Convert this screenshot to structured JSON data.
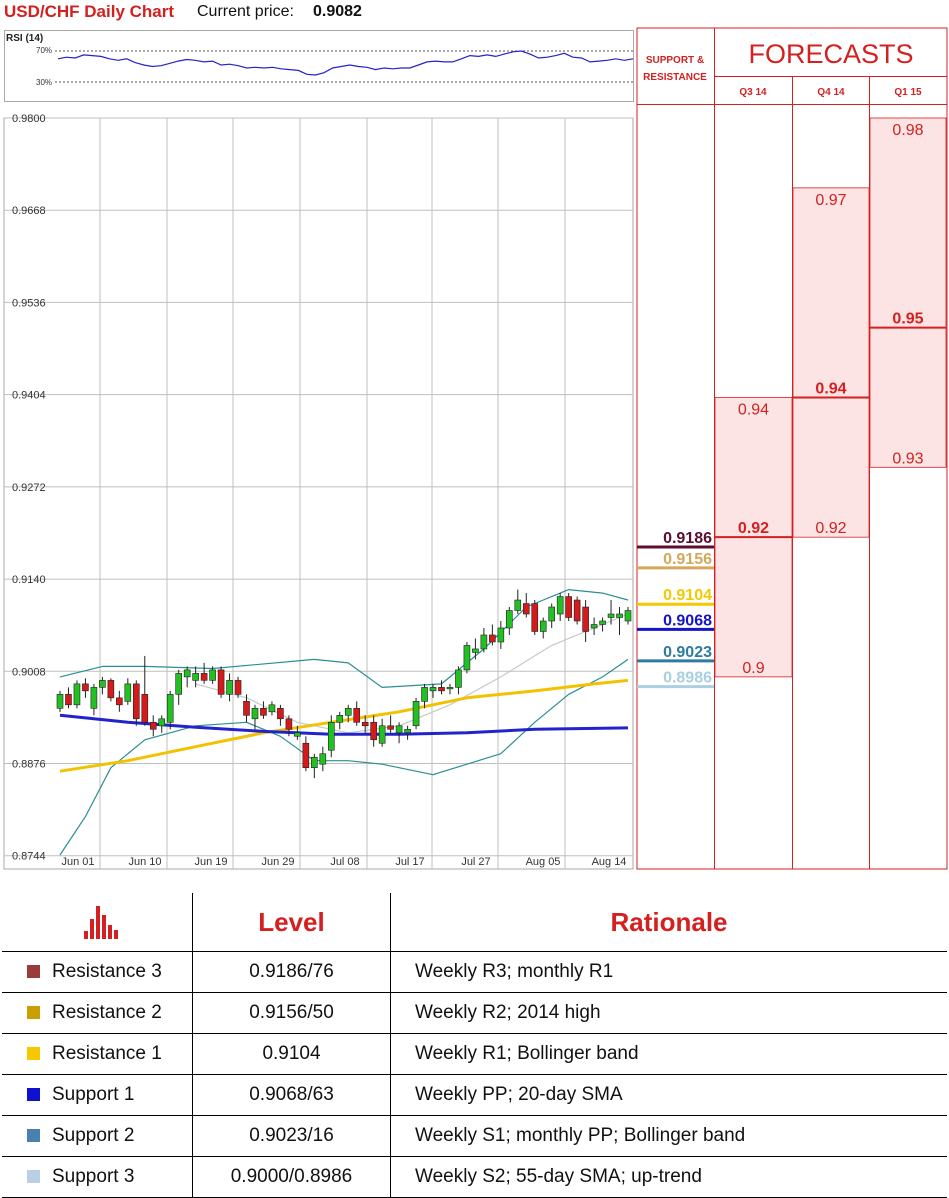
{
  "header": {
    "title": "USD/CHF Daily Chart",
    "price_label": "Current price:",
    "price_value": "0.9082"
  },
  "rsi": {
    "label": "RSI (14)",
    "ticks": [
      "70%",
      "30%"
    ]
  },
  "colors": {
    "accent": "#d42020",
    "bollinger": "#2a8f8f",
    "sma20": "#c8c8c8",
    "sma55": "#f2c200",
    "trend": "#2323cc",
    "bull": "#22c022",
    "bear": "#d41a1a",
    "forecast_fill": "#fde4e4"
  },
  "chart_data": [
    {
      "type": "candlestick",
      "title": "USD/CHF Daily Chart",
      "y_ticks": [
        "0.9800",
        "0.9668",
        "0.9536",
        "0.9404",
        "0.9272",
        "0.9140",
        "0.9008",
        "0.8876",
        "0.8744"
      ],
      "ylim": [
        0.8725,
        0.98
      ],
      "x_ticks": [
        "Jun 01",
        "Jun 10",
        "Jun 19",
        "Jun 29",
        "Jul 08",
        "Jul 17",
        "Jul 27",
        "Aug 05",
        "Aug 14"
      ],
      "grid": true,
      "ohlc": [
        [
          0.8955,
          0.898,
          0.895,
          0.8975
        ],
        [
          0.8975,
          0.8985,
          0.8955,
          0.896
        ],
        [
          0.896,
          0.8995,
          0.8955,
          0.899
        ],
        [
          0.899,
          0.8998,
          0.897,
          0.898
        ],
        [
          0.8955,
          0.899,
          0.8945,
          0.8985
        ],
        [
          0.8985,
          0.9,
          0.8975,
          0.8995
        ],
        [
          0.8995,
          0.8998,
          0.8965,
          0.897
        ],
        [
          0.897,
          0.898,
          0.895,
          0.896
        ],
        [
          0.8965,
          0.8998,
          0.896,
          0.899
        ],
        [
          0.899,
          0.8995,
          0.893,
          0.894
        ],
        [
          0.8975,
          0.903,
          0.893,
          0.8935
        ],
        [
          0.8935,
          0.8945,
          0.8915,
          0.8925
        ],
        [
          0.893,
          0.8945,
          0.892,
          0.894
        ],
        [
          0.8935,
          0.898,
          0.8925,
          0.8975
        ],
        [
          0.8975,
          0.901,
          0.896,
          0.9005
        ],
        [
          0.9,
          0.9015,
          0.8985,
          0.901
        ],
        [
          0.8995,
          0.9015,
          0.8985,
          0.9005
        ],
        [
          0.9005,
          0.902,
          0.899,
          0.8995
        ],
        [
          0.8995,
          0.9015,
          0.899,
          0.901
        ],
        [
          0.901,
          0.9015,
          0.897,
          0.8975
        ],
        [
          0.8975,
          0.9005,
          0.8965,
          0.8995
        ],
        [
          0.8995,
          0.9,
          0.897,
          0.8975
        ],
        [
          0.8965,
          0.8975,
          0.8935,
          0.8945
        ],
        [
          0.894,
          0.896,
          0.8925,
          0.8955
        ],
        [
          0.8955,
          0.8965,
          0.894,
          0.8945
        ],
        [
          0.895,
          0.8965,
          0.8945,
          0.896
        ],
        [
          0.8955,
          0.896,
          0.893,
          0.894
        ],
        [
          0.894,
          0.8945,
          0.8915,
          0.8925
        ],
        [
          0.8915,
          0.893,
          0.891,
          0.892
        ],
        [
          0.8905,
          0.8915,
          0.8865,
          0.887
        ],
        [
          0.887,
          0.889,
          0.8855,
          0.8885
        ],
        [
          0.8875,
          0.89,
          0.8865,
          0.889
        ],
        [
          0.8895,
          0.8945,
          0.8885,
          0.8935
        ],
        [
          0.8935,
          0.895,
          0.8925,
          0.8945
        ],
        [
          0.8945,
          0.896,
          0.8935,
          0.8955
        ],
        [
          0.8955,
          0.8965,
          0.893,
          0.8935
        ],
        [
          0.8935,
          0.8945,
          0.892,
          0.893
        ],
        [
          0.8935,
          0.8945,
          0.89,
          0.891
        ],
        [
          0.8905,
          0.894,
          0.89,
          0.893
        ],
        [
          0.893,
          0.8945,
          0.892,
          0.8925
        ],
        [
          0.892,
          0.8935,
          0.8905,
          0.893
        ],
        [
          0.892,
          0.893,
          0.891,
          0.8925
        ],
        [
          0.893,
          0.897,
          0.8925,
          0.8965
        ],
        [
          0.8965,
          0.899,
          0.8955,
          0.8985
        ],
        [
          0.898,
          0.899,
          0.897,
          0.8985
        ],
        [
          0.8985,
          0.8995,
          0.8975,
          0.898
        ],
        [
          0.8985,
          0.899,
          0.8975,
          0.8985
        ],
        [
          0.8985,
          0.9015,
          0.8975,
          0.901
        ],
        [
          0.901,
          0.905,
          0.9005,
          0.9045
        ],
        [
          0.9035,
          0.9055,
          0.9025,
          0.904
        ],
        [
          0.904,
          0.907,
          0.9035,
          0.906
        ],
        [
          0.906,
          0.9075,
          0.9045,
          0.905
        ],
        [
          0.905,
          0.908,
          0.904,
          0.907
        ],
        [
          0.907,
          0.91,
          0.906,
          0.9095
        ],
        [
          0.9095,
          0.9125,
          0.909,
          0.911
        ],
        [
          0.9105,
          0.912,
          0.9085,
          0.909
        ],
        [
          0.9105,
          0.911,
          0.906,
          0.9065
        ],
        [
          0.9065,
          0.9085,
          0.9055,
          0.908
        ],
        [
          0.908,
          0.9105,
          0.907,
          0.91
        ],
        [
          0.909,
          0.912,
          0.908,
          0.9115
        ],
        [
          0.9115,
          0.912,
          0.908,
          0.9085
        ],
        [
          0.911,
          0.9115,
          0.9075,
          0.908
        ],
        [
          0.91,
          0.911,
          0.905,
          0.9065
        ],
        [
          0.907,
          0.9085,
          0.906,
          0.9075
        ],
        [
          0.9075,
          0.9085,
          0.9065,
          0.908
        ],
        [
          0.9085,
          0.911,
          0.9075,
          0.909
        ],
        [
          0.9085,
          0.91,
          0.906,
          0.909
        ],
        [
          0.908,
          0.91,
          0.9075,
          0.9095
        ]
      ],
      "series": [
        {
          "kind": "bollinger-upper",
          "values": [
            [
              0,
              0.9
            ],
            [
              5,
              0.9015
            ],
            [
              10,
              0.9015
            ],
            [
              18,
              0.9012
            ],
            [
              30,
              0.9025
            ],
            [
              34,
              0.902
            ],
            [
              38,
              0.8985
            ],
            [
              45,
              0.899
            ],
            [
              50,
              0.904
            ],
            [
              55,
              0.91
            ],
            [
              60,
              0.9125
            ],
            [
              64,
              0.912
            ],
            [
              67,
              0.911
            ]
          ]
        },
        {
          "kind": "bollinger-lower",
          "values": [
            [
              0,
              0.8745
            ],
            [
              3,
              0.88
            ],
            [
              6,
              0.887
            ],
            [
              10,
              0.891
            ],
            [
              16,
              0.893
            ],
            [
              22,
              0.8935
            ],
            [
              26,
              0.8915
            ],
            [
              30,
              0.888
            ],
            [
              34,
              0.888
            ],
            [
              38,
              0.8875
            ],
            [
              44,
              0.886
            ],
            [
              48,
              0.8875
            ],
            [
              52,
              0.889
            ],
            [
              56,
              0.8935
            ],
            [
              60,
              0.8975
            ],
            [
              64,
              0.9
            ],
            [
              67,
              0.9025
            ]
          ]
        },
        {
          "kind": "sma-20",
          "values": [
            [
              16,
              0.899
            ],
            [
              22,
              0.897
            ],
            [
              28,
              0.8935
            ],
            [
              34,
              0.892
            ],
            [
              40,
              0.893
            ],
            [
              46,
              0.896
            ],
            [
              52,
              0.9
            ],
            [
              58,
              0.9045
            ],
            [
              63,
              0.907
            ],
            [
              67,
              0.909
            ]
          ]
        },
        {
          "kind": "sma-55",
          "values": [
            [
              0,
              0.8865
            ],
            [
              8,
              0.888
            ],
            [
              16,
              0.89
            ],
            [
              24,
              0.892
            ],
            [
              32,
              0.8935
            ],
            [
              40,
              0.895
            ],
            [
              48,
              0.897
            ],
            [
              56,
              0.898
            ],
            [
              63,
              0.899
            ],
            [
              67,
              0.8995
            ]
          ]
        },
        {
          "kind": "trend-line",
          "values": [
            [
              0,
              0.8945
            ],
            [
              8,
              0.8935
            ],
            [
              16,
              0.8928
            ],
            [
              24,
              0.8922
            ],
            [
              32,
              0.8918
            ],
            [
              40,
              0.8918
            ],
            [
              48,
              0.892
            ],
            [
              56,
              0.8925
            ],
            [
              67,
              0.8927
            ]
          ]
        }
      ],
      "rsi_values": [
        60,
        62,
        61,
        65,
        64,
        63,
        60,
        58,
        60,
        55,
        52,
        50,
        51,
        54,
        57,
        59,
        58,
        56,
        57,
        52,
        53,
        51,
        48,
        49,
        48,
        49,
        47,
        46,
        45,
        40,
        39,
        42,
        48,
        50,
        52,
        50,
        49,
        46,
        48,
        47,
        48,
        48,
        52,
        56,
        57,
        56,
        56,
        60,
        64,
        63,
        65,
        63,
        66,
        69,
        70,
        66,
        61,
        62,
        64,
        67,
        62,
        61,
        56,
        57,
        58,
        60,
        58,
        60
      ]
    },
    {
      "type": "table",
      "title": "FORECASTS",
      "sr_header": [
        "SUPPORT &",
        "RESISTANCE"
      ],
      "ylim": [
        0.8725,
        0.98
      ],
      "sr_levels": [
        {
          "value": "0.9186",
          "color": "#5b0f2f"
        },
        {
          "value": "0.9156",
          "color": "#d4a85a"
        },
        {
          "value": "0.9104",
          "color": "#f5c800"
        },
        {
          "value": "0.9068",
          "color": "#1414c8"
        },
        {
          "value": "0.9023",
          "color": "#2e7aa0"
        },
        {
          "value": "0.8986",
          "color": "#a9cfe0"
        }
      ],
      "columns": [
        {
          "label": "Q3 14",
          "high": "0.94",
          "median": "0.92",
          "low": "0.9"
        },
        {
          "label": "Q4 14",
          "high": "0.97",
          "median": "0.94",
          "low": "0.92"
        },
        {
          "label": "Q1 15",
          "high": "0.98",
          "median": "0.95",
          "low": "0.93"
        }
      ]
    }
  ],
  "table": {
    "headers": [
      "Level",
      "Rationale"
    ],
    "rows": [
      {
        "name": "Resistance 3",
        "level": "0.9186/76",
        "rationale": "Weekly R3; monthly R1",
        "color": "#9b3a3a"
      },
      {
        "name": "Resistance 2",
        "level": "0.9156/50",
        "rationale": "Weekly R2; 2014 high",
        "color": "#c9a000"
      },
      {
        "name": "Resistance 1",
        "level": "0.9104",
        "rationale": "Weekly R1; Bollinger band",
        "color": "#f5c800"
      },
      {
        "name": "Support 1",
        "level": "0.9068/63",
        "rationale": "Weekly PP; 20-day SMA",
        "color": "#1010d0"
      },
      {
        "name": "Support 2",
        "level": "0.9023/16",
        "rationale": "Weekly S1; monthly PP; Bollinger band",
        "color": "#4a7fb0"
      },
      {
        "name": "Support 3",
        "level": "0.9000/0.8986",
        "rationale": "Weekly S2; 55-day SMA; up-trend",
        "color": "#b8cfe4"
      }
    ]
  }
}
